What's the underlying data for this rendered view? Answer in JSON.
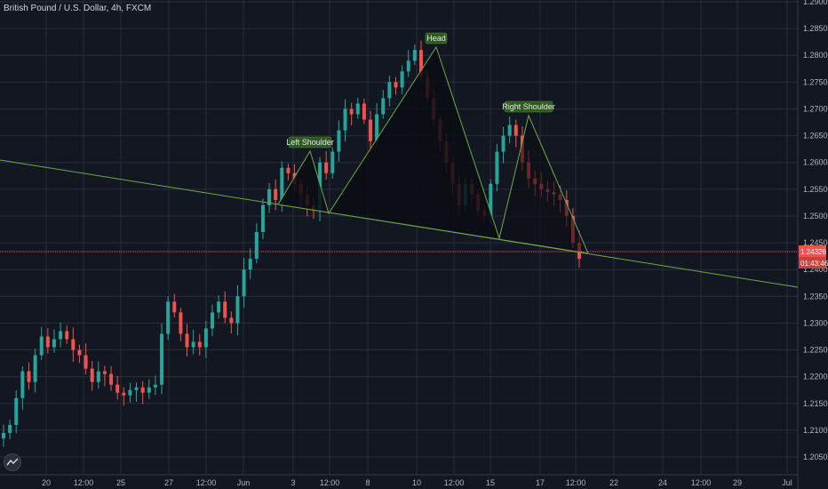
{
  "title": "British Pound / U.S. Dollar, 4h, FXCM",
  "colors": {
    "background": "#131722",
    "grid": "#2a2e39",
    "up": "#26a69a",
    "down": "#ef5350",
    "trendline": "#6fa84a",
    "price_line": "#ef5350",
    "annotation_bg": "#2e5a1f"
  },
  "chart_data": {
    "type": "candlestick",
    "symbol": "British Pound / U.S. Dollar",
    "timeframe": "4h",
    "source": "FXCM",
    "ylim": [
      1.2,
      1.29
    ],
    "y_ticks": [
      "1.20500",
      "1.21000",
      "1.21500",
      "1.22000",
      "1.22500",
      "1.23000",
      "1.23500",
      "1.24000",
      "1.24500",
      "1.25000",
      "1.25500",
      "1.26000",
      "1.26500",
      "1.27000",
      "1.27500",
      "1.28000",
      "1.28500",
      "1.29000"
    ],
    "x_ticks": [
      "20",
      "12:00",
      "25",
      "27",
      "12:00",
      "Jun",
      "3",
      "12:00",
      "8",
      "10",
      "12:00",
      "15",
      "17",
      "12:00",
      "22",
      "24",
      "12:00",
      "29",
      "Jul"
    ],
    "close_series": [
      1.2095,
      1.211,
      1.216,
      1.221,
      1.219,
      1.224,
      1.2275,
      1.2255,
      1.227,
      1.2285,
      1.227,
      1.225,
      1.224,
      1.2215,
      1.219,
      1.221,
      1.2205,
      1.2185,
      1.217,
      1.2165,
      1.2175,
      1.218,
      1.217,
      1.218,
      1.2185,
      1.228,
      1.234,
      1.232,
      1.228,
      1.2255,
      1.2265,
      1.2255,
      1.229,
      1.232,
      1.234,
      1.231,
      1.23,
      1.235,
      1.24,
      1.242,
      1.247,
      1.252,
      1.255,
      1.253,
      1.259,
      1.258,
      1.256,
      1.254,
      1.252,
      1.251,
      1.26,
      1.258,
      1.262,
      1.266,
      1.27,
      1.269,
      1.271,
      1.268,
      1.264,
      1.269,
      1.272,
      1.275,
      1.274,
      1.277,
      1.279,
      1.281,
      1.276,
      1.272,
      1.268,
      1.264,
      1.26,
      1.256,
      1.252,
      1.256,
      1.254,
      1.251,
      1.25,
      1.256,
      1.262,
      1.265,
      1.267,
      1.265,
      1.26,
      1.257,
      1.256,
      1.255,
      1.2545,
      1.254,
      1.253,
      1.25,
      1.245,
      1.242
    ],
    "last_price": "1.24326",
    "countdown": "01:43:46",
    "annotations": [
      "Left Shoulder",
      "Head",
      "Right Shoulder"
    ],
    "pattern": "head-and-shoulders",
    "grid": true
  }
}
